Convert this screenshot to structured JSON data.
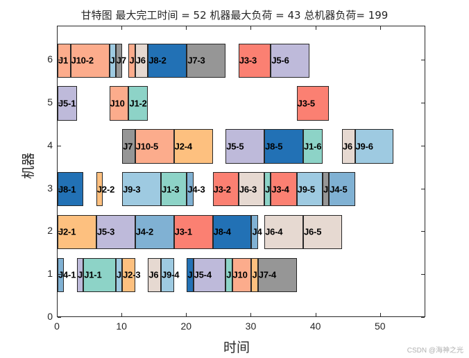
{
  "chart_data": {
    "type": "gantt",
    "title": "甘特图 最大完工时间 = 52 机器最大负荷 = 43 总机器负荷= 199",
    "xlabel": "时间",
    "ylabel": "机器",
    "xlim": [
      0,
      57
    ],
    "ylim": [
      0,
      6.8
    ],
    "xticks": [
      "0",
      "10",
      "20",
      "30",
      "40",
      "50"
    ],
    "yticks": [
      "0",
      "1",
      "2",
      "3",
      "4",
      "5",
      "6"
    ],
    "colors": {
      "J1": "#8dd3c7",
      "J2": "#fdc07f",
      "J3": "#fb8072",
      "J4": "#80b1d3",
      "J5": "#bebada",
      "J6": "#e6d9d1",
      "J7": "#969696",
      "J8": "#2271b5",
      "J9": "#9ecae1",
      "J10": "#fcac8c",
      "J1a": "#fcac8c"
    },
    "tasks": [
      {
        "machine": 6,
        "start": 0,
        "end": 2,
        "label": "J1",
        "job": "J10"
      },
      {
        "machine": 6,
        "start": 2,
        "end": 8,
        "label": "J10-2",
        "job": "J10"
      },
      {
        "machine": 6,
        "start": 8,
        "end": 9,
        "label": "J",
        "job": "J9"
      },
      {
        "machine": 6,
        "start": 9,
        "end": 10,
        "label": "J7",
        "job": "J7"
      },
      {
        "machine": 6,
        "start": 11,
        "end": 12,
        "label": "J",
        "job": "J10"
      },
      {
        "machine": 6,
        "start": 12,
        "end": 14,
        "label": "J6",
        "job": "J6"
      },
      {
        "machine": 6,
        "start": 14,
        "end": 20,
        "label": "J8-2",
        "job": "J8"
      },
      {
        "machine": 6,
        "start": 20,
        "end": 26,
        "label": "J7-3",
        "job": "J7"
      },
      {
        "machine": 6,
        "start": 28,
        "end": 33,
        "label": "J3-3",
        "job": "J3"
      },
      {
        "machine": 6,
        "start": 33,
        "end": 39,
        "label": "J5-6",
        "job": "J5"
      },
      {
        "machine": 5,
        "start": 0,
        "end": 3,
        "label": "J5-1",
        "job": "J5"
      },
      {
        "machine": 5,
        "start": 8,
        "end": 11,
        "label": "J10",
        "job": "J10"
      },
      {
        "machine": 5,
        "start": 11,
        "end": 14,
        "label": "J1-2",
        "job": "J1"
      },
      {
        "machine": 5,
        "start": 37,
        "end": 42,
        "label": "J3-5",
        "job": "J3"
      },
      {
        "machine": 4,
        "start": 10,
        "end": 12,
        "label": "J7",
        "job": "J7"
      },
      {
        "machine": 4,
        "start": 12,
        "end": 18,
        "label": "J10-5",
        "job": "J10"
      },
      {
        "machine": 4,
        "start": 18,
        "end": 24,
        "label": "J2-4",
        "job": "J2"
      },
      {
        "machine": 4,
        "start": 26,
        "end": 32,
        "label": "J5-5",
        "job": "J5"
      },
      {
        "machine": 4,
        "start": 32,
        "end": 38,
        "label": "J8-5",
        "job": "J8"
      },
      {
        "machine": 4,
        "start": 38,
        "end": 41,
        "label": "J1-6",
        "job": "J1"
      },
      {
        "machine": 4,
        "start": 44,
        "end": 46,
        "label": "J6",
        "job": "J6"
      },
      {
        "machine": 4,
        "start": 46,
        "end": 52,
        "label": "J9-6",
        "job": "J9"
      },
      {
        "machine": 3,
        "start": 0,
        "end": 4,
        "label": "J8-1",
        "job": "J8"
      },
      {
        "machine": 3,
        "start": 6,
        "end": 7,
        "label": "J2-2",
        "job": "J2"
      },
      {
        "machine": 3,
        "start": 10,
        "end": 16,
        "label": "J9-3",
        "job": "J9"
      },
      {
        "machine": 3,
        "start": 16,
        "end": 20,
        "label": "J1-3",
        "job": "J1"
      },
      {
        "machine": 3,
        "start": 20,
        "end": 21,
        "label": "J4-3",
        "job": "J4"
      },
      {
        "machine": 3,
        "start": 24,
        "end": 28,
        "label": "J3-2",
        "job": "J3"
      },
      {
        "machine": 3,
        "start": 28,
        "end": 32,
        "label": "J6-3",
        "job": "J6"
      },
      {
        "machine": 3,
        "start": 32,
        "end": 33,
        "label": "J",
        "job": "J1"
      },
      {
        "machine": 3,
        "start": 33,
        "end": 37,
        "label": "J3-4",
        "job": "J3"
      },
      {
        "machine": 3,
        "start": 37,
        "end": 41,
        "label": "J9-5",
        "job": "J9"
      },
      {
        "machine": 3,
        "start": 41,
        "end": 42,
        "label": "J",
        "job": "J7"
      },
      {
        "machine": 3,
        "start": 42,
        "end": 46,
        "label": "J4-5",
        "job": "J4"
      },
      {
        "machine": 2,
        "start": 0,
        "end": 6,
        "label": "J2-1",
        "job": "J2"
      },
      {
        "machine": 2,
        "start": 6,
        "end": 12,
        "label": "J5-3",
        "job": "J5"
      },
      {
        "machine": 2,
        "start": 12,
        "end": 18,
        "label": "J4-2",
        "job": "J4"
      },
      {
        "machine": 2,
        "start": 18,
        "end": 24,
        "label": "J3-1",
        "job": "J3"
      },
      {
        "machine": 2,
        "start": 24,
        "end": 30,
        "label": "J8-4",
        "job": "J8"
      },
      {
        "machine": 2,
        "start": 30,
        "end": 31,
        "label": "J4",
        "job": "J4"
      },
      {
        "machine": 2,
        "start": 32,
        "end": 38,
        "label": "J6-4",
        "job": "J6"
      },
      {
        "machine": 2,
        "start": 38,
        "end": 44,
        "label": "J6-5",
        "job": "J6"
      },
      {
        "machine": 1,
        "start": 0,
        "end": 1,
        "label": "J4-1",
        "job": "J4"
      },
      {
        "machine": 1,
        "start": 3,
        "end": 4,
        "label": "J",
        "job": "J5"
      },
      {
        "machine": 1,
        "start": 4,
        "end": 9,
        "label": "J1-1",
        "job": "J1"
      },
      {
        "machine": 1,
        "start": 9,
        "end": 10,
        "label": "J",
        "job": "J9"
      },
      {
        "machine": 1,
        "start": 10,
        "end": 12,
        "label": "J2-3",
        "job": "J2"
      },
      {
        "machine": 1,
        "start": 14,
        "end": 16,
        "label": "J6",
        "job": "J6"
      },
      {
        "machine": 1,
        "start": 16,
        "end": 18,
        "label": "J9-4",
        "job": "J9"
      },
      {
        "machine": 1,
        "start": 20,
        "end": 21,
        "label": "J",
        "job": "J8"
      },
      {
        "machine": 1,
        "start": 21,
        "end": 26,
        "label": "J5-4",
        "job": "J5"
      },
      {
        "machine": 1,
        "start": 26,
        "end": 27,
        "label": "J",
        "job": "J1"
      },
      {
        "machine": 1,
        "start": 27,
        "end": 30,
        "label": "J10",
        "job": "J10"
      },
      {
        "machine": 1,
        "start": 30,
        "end": 31,
        "label": "J",
        "job": "J2"
      },
      {
        "machine": 1,
        "start": 31,
        "end": 37,
        "label": "J7-4",
        "job": "J7"
      }
    ],
    "summary": {
      "makespan": 52,
      "max_machine_load": 43,
      "total_machine_load": 199
    },
    "grid": false,
    "legend": "none"
  },
  "watermark": "CSDN @海神之光"
}
